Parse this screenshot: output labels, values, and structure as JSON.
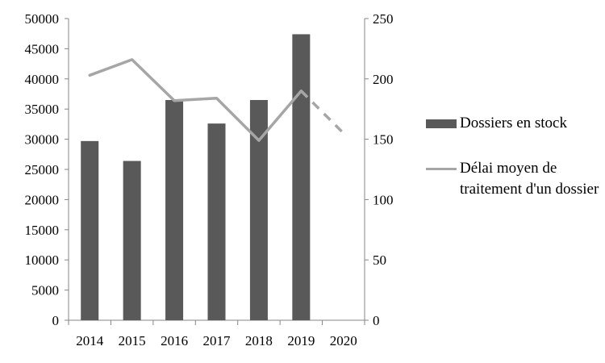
{
  "chart_data": {
    "type": "bar",
    "categories": [
      "2014",
      "2015",
      "2016",
      "2017",
      "2018",
      "2019",
      "2020"
    ],
    "series": [
      {
        "name": "Dossiers en stock",
        "type": "bar",
        "axis": "left",
        "values": [
          29700,
          26400,
          36500,
          32600,
          36500,
          47400,
          null
        ],
        "color": "#595959"
      },
      {
        "name": "Délai moyen de traitement d'un dossier",
        "type": "line",
        "axis": "right",
        "values": [
          203,
          216,
          182,
          184,
          149,
          190,
          155
        ],
        "dashed_from_index": 5,
        "color": "#a6a6a6"
      }
    ],
    "ylim_left": [
      0,
      50000
    ],
    "yticks_left": [
      "0",
      "5000",
      "10000",
      "15000",
      "20000",
      "25000",
      "30000",
      "35000",
      "40000",
      "45000",
      "50000"
    ],
    "ylim_right": [
      0,
      250
    ],
    "yticks_right": [
      "0",
      "50",
      "100",
      "150",
      "200",
      "250"
    ],
    "legend_position": "right"
  }
}
